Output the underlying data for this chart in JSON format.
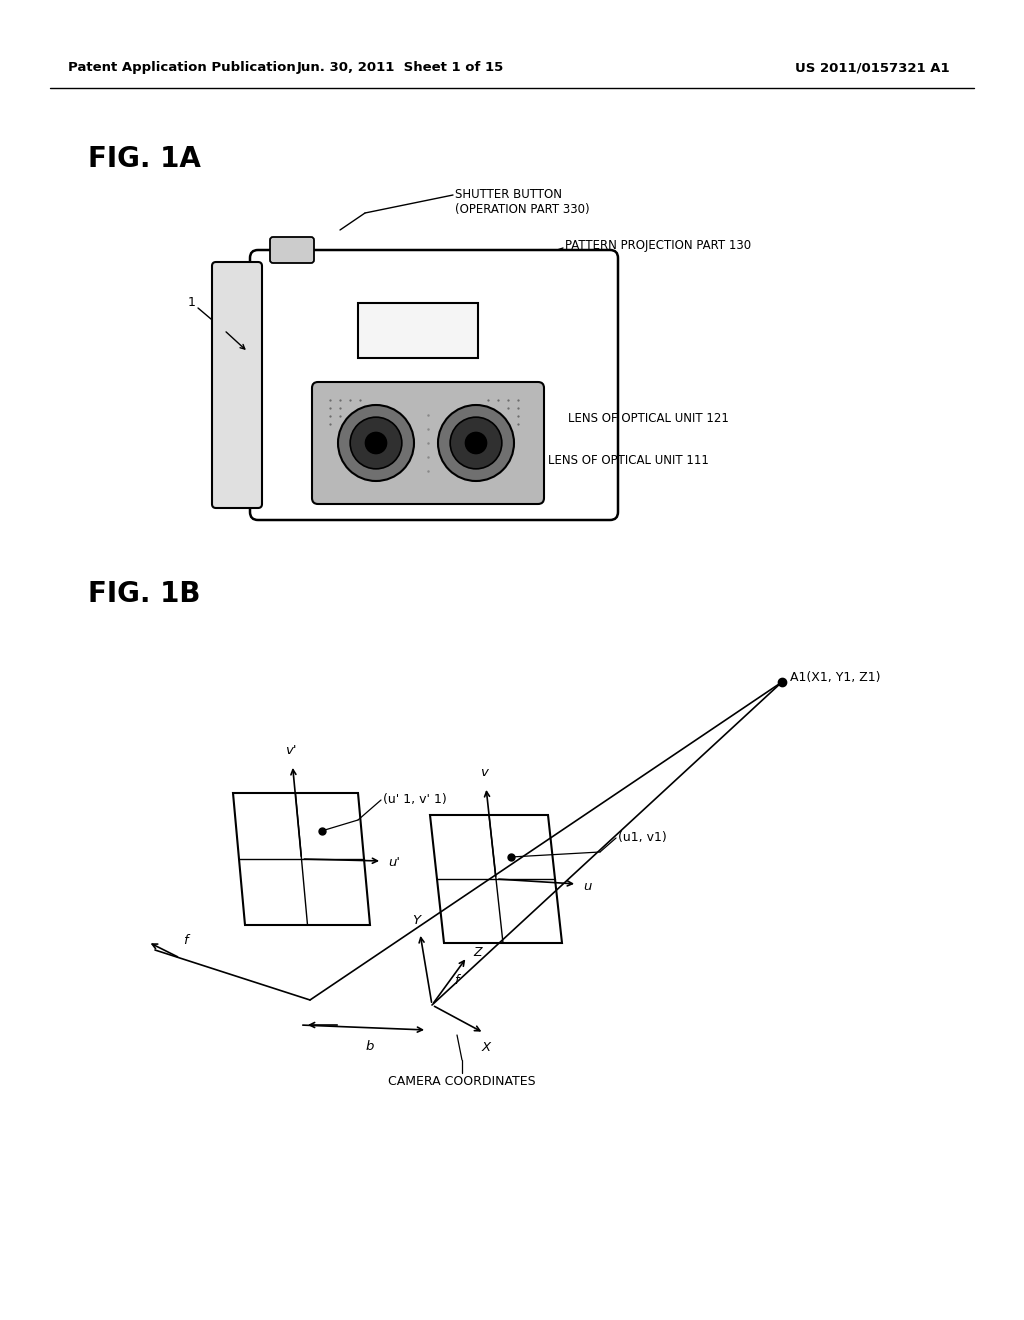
{
  "bg_color": "#ffffff",
  "header_left": "Patent Application Publication",
  "header_center": "Jun. 30, 2011  Sheet 1 of 15",
  "header_right": "US 2011/0157321 A1",
  "fig1a_label": "FIG. 1A",
  "fig1b_label": "FIG. 1B",
  "camera_labels": {
    "shutter": "SHUTTER BUTTON\n(OPERATION PART 330)",
    "pattern": "PATTERN PROJECTION PART 130",
    "lens121": "LENS OF OPTICAL UNIT 121",
    "lens111": "LENS OF OPTICAL UNIT 111",
    "label1": "1"
  },
  "diagram_labels": {
    "A1": "A1(X1, Y1, Z1)",
    "uv1": "(u1, v1)",
    "upvp1": "(u' 1, v' 1)",
    "camera_coords": "CAMERA COORDINATES",
    "vp": "v'",
    "up": "u'",
    "v": "v",
    "u": "u",
    "Y": "Y",
    "Z": "Z",
    "X": "X",
    "f_left": "f",
    "f_right": "f",
    "b": "b"
  }
}
